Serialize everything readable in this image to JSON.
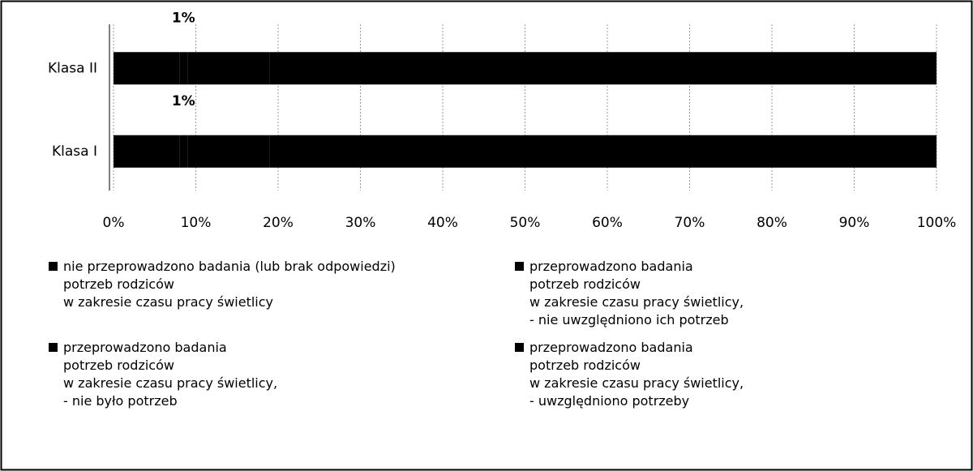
{
  "chart_data": {
    "type": "stacked_barh",
    "categories": [
      "Klasa II",
      "Klasa I"
    ],
    "series": [
      {
        "name": "nie przeprowadzono badania (lub brak odpowiedzi)\npotrzeb rodziców\nw zakresie czasu pracy świetlicy",
        "color": "#000000",
        "values": [
          8,
          8
        ]
      },
      {
        "name": "przeprowadzono badania\npotrzeb rodziców\nw zakresie czasu pracy świetlicy,\n- nie było potrzeb",
        "color": "#000000",
        "values": [
          1,
          1
        ],
        "value_labels": [
          "1%",
          "1%"
        ]
      },
      {
        "name": "przeprowadzono badania\npotrzeb rodziców\nw zakresie czasu pracy świetlicy,\n- nie uwzględniono ich potrzeb",
        "color": "#000000",
        "values": [
          10,
          10
        ]
      },
      {
        "name": "przeprowadzono badania\npotrzeb rodziców\nw zakresie czasu pracy świetlicy,\n- uwzględniono potrzeby",
        "color": "#000000",
        "values": [
          81,
          81
        ]
      }
    ],
    "xlim": [
      0,
      100
    ],
    "xticks": [
      {
        "value": 0,
        "label": "0%"
      },
      {
        "value": 10,
        "label": "10%"
      },
      {
        "value": 20,
        "label": "20%"
      },
      {
        "value": 30,
        "label": "30%"
      },
      {
        "value": 40,
        "label": "40%"
      },
      {
        "value": 50,
        "label": "50%"
      },
      {
        "value": 60,
        "label": "60%"
      },
      {
        "value": 70,
        "label": "70%"
      },
      {
        "value": 80,
        "label": "80%"
      },
      {
        "value": 90,
        "label": "90%"
      },
      {
        "value": 100,
        "label": "100%"
      }
    ],
    "grid": true
  }
}
